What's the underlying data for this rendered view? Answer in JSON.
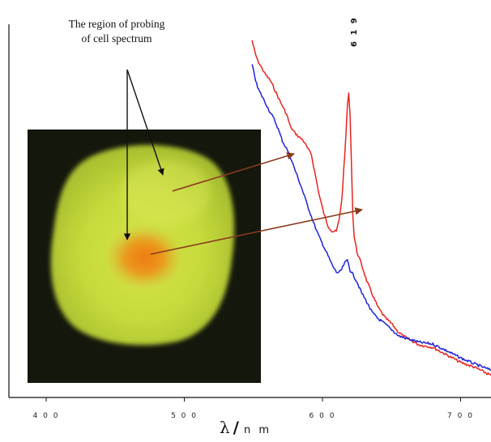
{
  "chart_data": {
    "type": "line",
    "title": "",
    "xlabel": "λ / n m",
    "ylabel": "",
    "xlim": [
      373,
      722
    ],
    "ylim": [
      0,
      1
    ],
    "grid": false,
    "x_ticks": [
      400,
      500,
      600,
      700
    ],
    "x_tick_labels": [
      "4 0 0",
      "5 0 0",
      "6 0 0",
      "7 0 0"
    ],
    "peak_label": "6 1 9",
    "peak_x": 619,
    "annotation": [
      "The region of probing",
      "of cell spectrum"
    ],
    "series": [
      {
        "color": "#e8231f",
        "x": [
          549,
          551,
          553,
          556,
          559,
          562,
          565,
          568,
          571,
          574,
          577,
          580,
          583,
          586,
          589,
          592,
          595,
          598,
          601,
          604,
          607,
          610,
          612,
          614,
          616,
          617,
          618,
          619,
          620,
          621,
          622,
          623,
          625,
          628,
          632,
          636,
          640,
          645,
          650,
          655,
          660,
          670,
          680,
          690,
          700,
          710,
          722
        ],
        "y": [
          0.957,
          0.926,
          0.903,
          0.883,
          0.864,
          0.851,
          0.828,
          0.804,
          0.781,
          0.759,
          0.724,
          0.709,
          0.698,
          0.689,
          0.669,
          0.651,
          0.592,
          0.537,
          0.493,
          0.46,
          0.445,
          0.445,
          0.475,
          0.53,
          0.642,
          0.706,
          0.78,
          0.813,
          0.757,
          0.622,
          0.489,
          0.43,
          0.39,
          0.359,
          0.313,
          0.277,
          0.243,
          0.215,
          0.198,
          0.175,
          0.161,
          0.141,
          0.134,
          0.114,
          0.094,
          0.081,
          0.059
        ]
      },
      {
        "color": "#1e23d8",
        "x": [
          549,
          551,
          553,
          556,
          559,
          562,
          565,
          568,
          571,
          574,
          577,
          580,
          583,
          586,
          589,
          592,
          595,
          598,
          601,
          604,
          607,
          610,
          612,
          614,
          616,
          618,
          619,
          620,
          622,
          625,
          628,
          632,
          636,
          640,
          645,
          650,
          655,
          660,
          670,
          680,
          690,
          700,
          710,
          722
        ],
        "y": [
          0.892,
          0.86,
          0.83,
          0.809,
          0.787,
          0.765,
          0.746,
          0.719,
          0.687,
          0.667,
          0.642,
          0.611,
          0.581,
          0.55,
          0.516,
          0.485,
          0.454,
          0.427,
          0.404,
          0.38,
          0.355,
          0.336,
          0.334,
          0.344,
          0.359,
          0.369,
          0.357,
          0.341,
          0.33,
          0.31,
          0.283,
          0.256,
          0.228,
          0.212,
          0.198,
          0.182,
          0.165,
          0.159,
          0.148,
          0.143,
          0.125,
          0.106,
          0.09,
          0.073
        ]
      }
    ]
  },
  "colors": {
    "red_series": "#e8231f",
    "blue_series": "#1e23d8",
    "pointer_arrow": "#8a3a1e",
    "label_arrow": "#111111",
    "cell_background": "#14170c",
    "cell_body": "#c2d63a",
    "nucleus": "#e98a1a"
  }
}
